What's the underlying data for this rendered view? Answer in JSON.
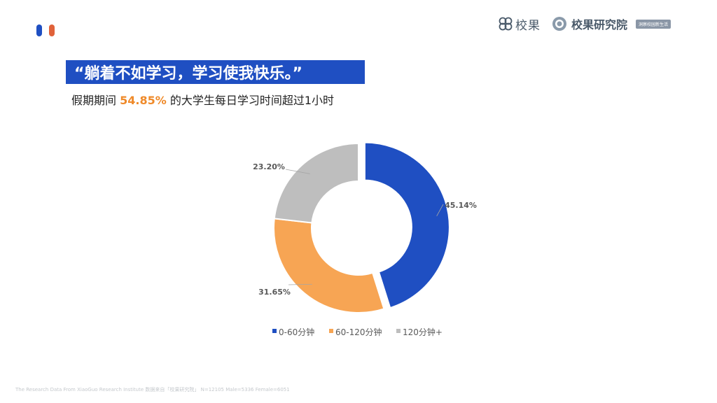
{
  "header": {
    "brand1": "校果",
    "brand2": "校果研究院",
    "brand2_badge": "洞察校园新生活"
  },
  "headline": "“躺着不如学习，学习使我快乐。”",
  "subhead": {
    "prefix": "假期期间 ",
    "highlight": "54.85%",
    "suffix": " 的大学生每日学习时间超过1小时"
  },
  "colors": {
    "blue": "#1f4fc2",
    "orange": "#f7a554",
    "gray": "#bebebe",
    "accent": "#ef8a2a"
  },
  "chart_data": {
    "type": "pie",
    "subtype": "donut",
    "title": "",
    "categories": [
      "0-60分钟",
      "60-120分钟",
      "120分钟+"
    ],
    "values": [
      45.14,
      31.65,
      23.2
    ],
    "labels": [
      "45.14%",
      "31.65%",
      "23.20%"
    ],
    "colors": [
      "#1f4fc2",
      "#f7a554",
      "#bebebe"
    ],
    "exploded": [
      true,
      false,
      false
    ],
    "legend": "bottom"
  },
  "footer": "The Research Data From XiaoGuo Research Institute 数据来自「校果研究院」  N=12105  Male=5336 Female=6051"
}
